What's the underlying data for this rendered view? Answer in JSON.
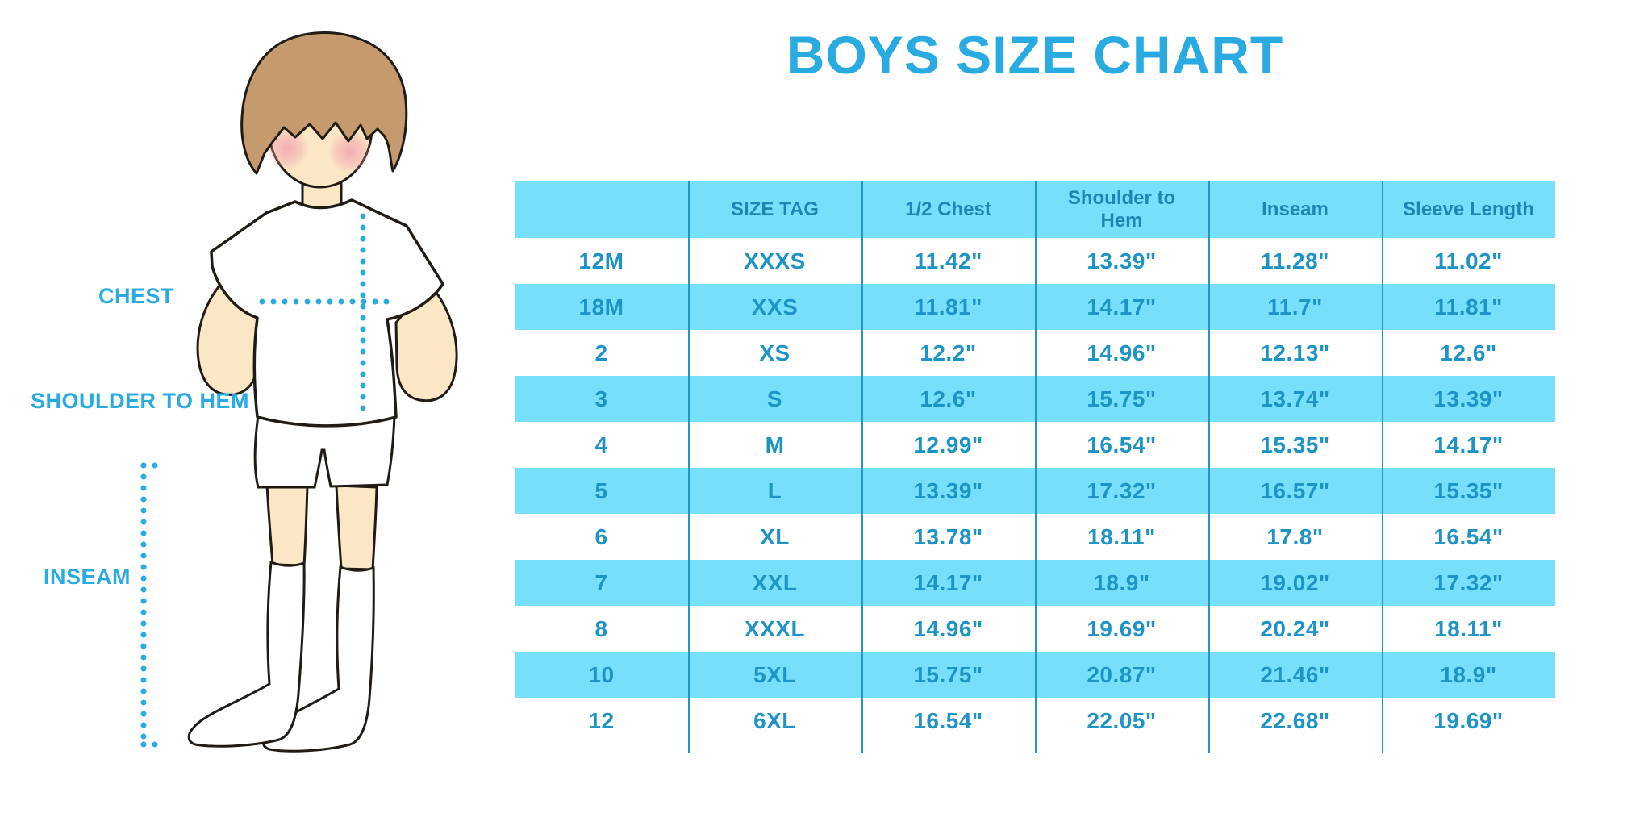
{
  "title": "BOYS SIZE CHART",
  "colors": {
    "accent_blue": "#29ABE2",
    "row_band_blue": "#76DFFA",
    "divider_blue": "#2596BE",
    "header_text_blue": "#1F86B4",
    "cell_text_blue": "#1E93C5"
  },
  "diagram": {
    "boy_illustration": "boy-back-view-with-measurement-lines",
    "chest_label": "CHEST",
    "shoulder_to_hem_label": "SHOULDER TO HEM",
    "inseam_label": "INSEAM"
  },
  "chart_data": {
    "type": "table",
    "title": "BOYS SIZE CHART",
    "columns": [
      "",
      "SIZE TAG",
      "1/2 Chest",
      "Shoulder to Hem",
      "Inseam",
      "Sleeve Length"
    ],
    "rows": [
      [
        "12M",
        "XXXS",
        "11.42\"",
        "13.39\"",
        "11.28\"",
        "11.02\""
      ],
      [
        "18M",
        "XXS",
        "11.81\"",
        "14.17\"",
        "11.7\"",
        "11.81\""
      ],
      [
        "2",
        "XS",
        "12.2\"",
        "14.96\"",
        "12.13\"",
        "12.6\""
      ],
      [
        "3",
        "S",
        "12.6\"",
        "15.75\"",
        "13.74\"",
        "13.39\""
      ],
      [
        "4",
        "M",
        "12.99\"",
        "16.54\"",
        "15.35\"",
        "14.17\""
      ],
      [
        "5",
        "L",
        "13.39\"",
        "17.32\"",
        "16.57\"",
        "15.35\""
      ],
      [
        "6",
        "XL",
        "13.78\"",
        "18.11\"",
        "17.8\"",
        "16.54\""
      ],
      [
        "7",
        "XXL",
        "14.17\"",
        "18.9\"",
        "19.02\"",
        "17.32\""
      ],
      [
        "8",
        "XXXL",
        "14.96\"",
        "19.69\"",
        "20.24\"",
        "18.11\""
      ],
      [
        "10",
        "5XL",
        "15.75\"",
        "20.87\"",
        "21.46\"",
        "18.9\""
      ],
      [
        "12",
        "6XL",
        "16.54\"",
        "22.05\"",
        "22.68\"",
        "19.69\""
      ]
    ],
    "row_striping": "white / light-blue alternating, starting white",
    "grid": "vertical column dividers only, extending slightly below last row",
    "legend": "none"
  }
}
